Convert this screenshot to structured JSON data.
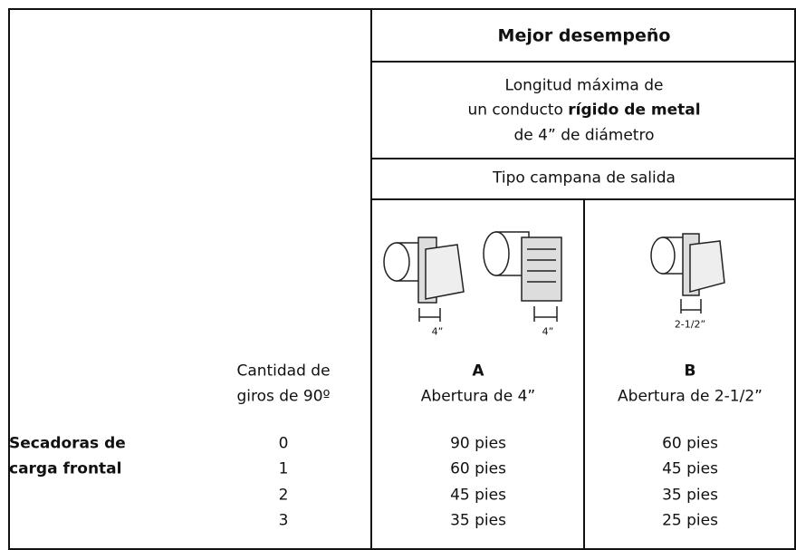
{
  "header": {
    "title": "Mejor desempeño",
    "description": {
      "line1": "Longitud máxima de",
      "line2_prefix": "un conducto",
      "line2_bold": "rígido de metal",
      "line3": "de 4” de diámetro"
    },
    "vent_type": "Tipo campana de salida"
  },
  "columns": [
    {
      "letter": "A",
      "label": "Abertura de 4”",
      "dimension_labels": [
        "4”",
        "4”"
      ]
    },
    {
      "letter": "B",
      "label": "Abertura de 2-1/2”",
      "dimension_labels": [
        "2-1/2”"
      ]
    }
  ],
  "turns_header": [
    "Cantidad de",
    "giros de 90º"
  ],
  "dryer_type": [
    "Secadoras de",
    "carga frontal"
  ],
  "rows": [
    {
      "turns": 0,
      "A": "90 pies",
      "B": "60 pies"
    },
    {
      "turns": 1,
      "A": "60 pies",
      "B": "45 pies"
    },
    {
      "turns": 2,
      "A": "45 pies",
      "B": "35 pies"
    },
    {
      "turns": 3,
      "A": "35 pies",
      "B": "25 pies"
    }
  ]
}
